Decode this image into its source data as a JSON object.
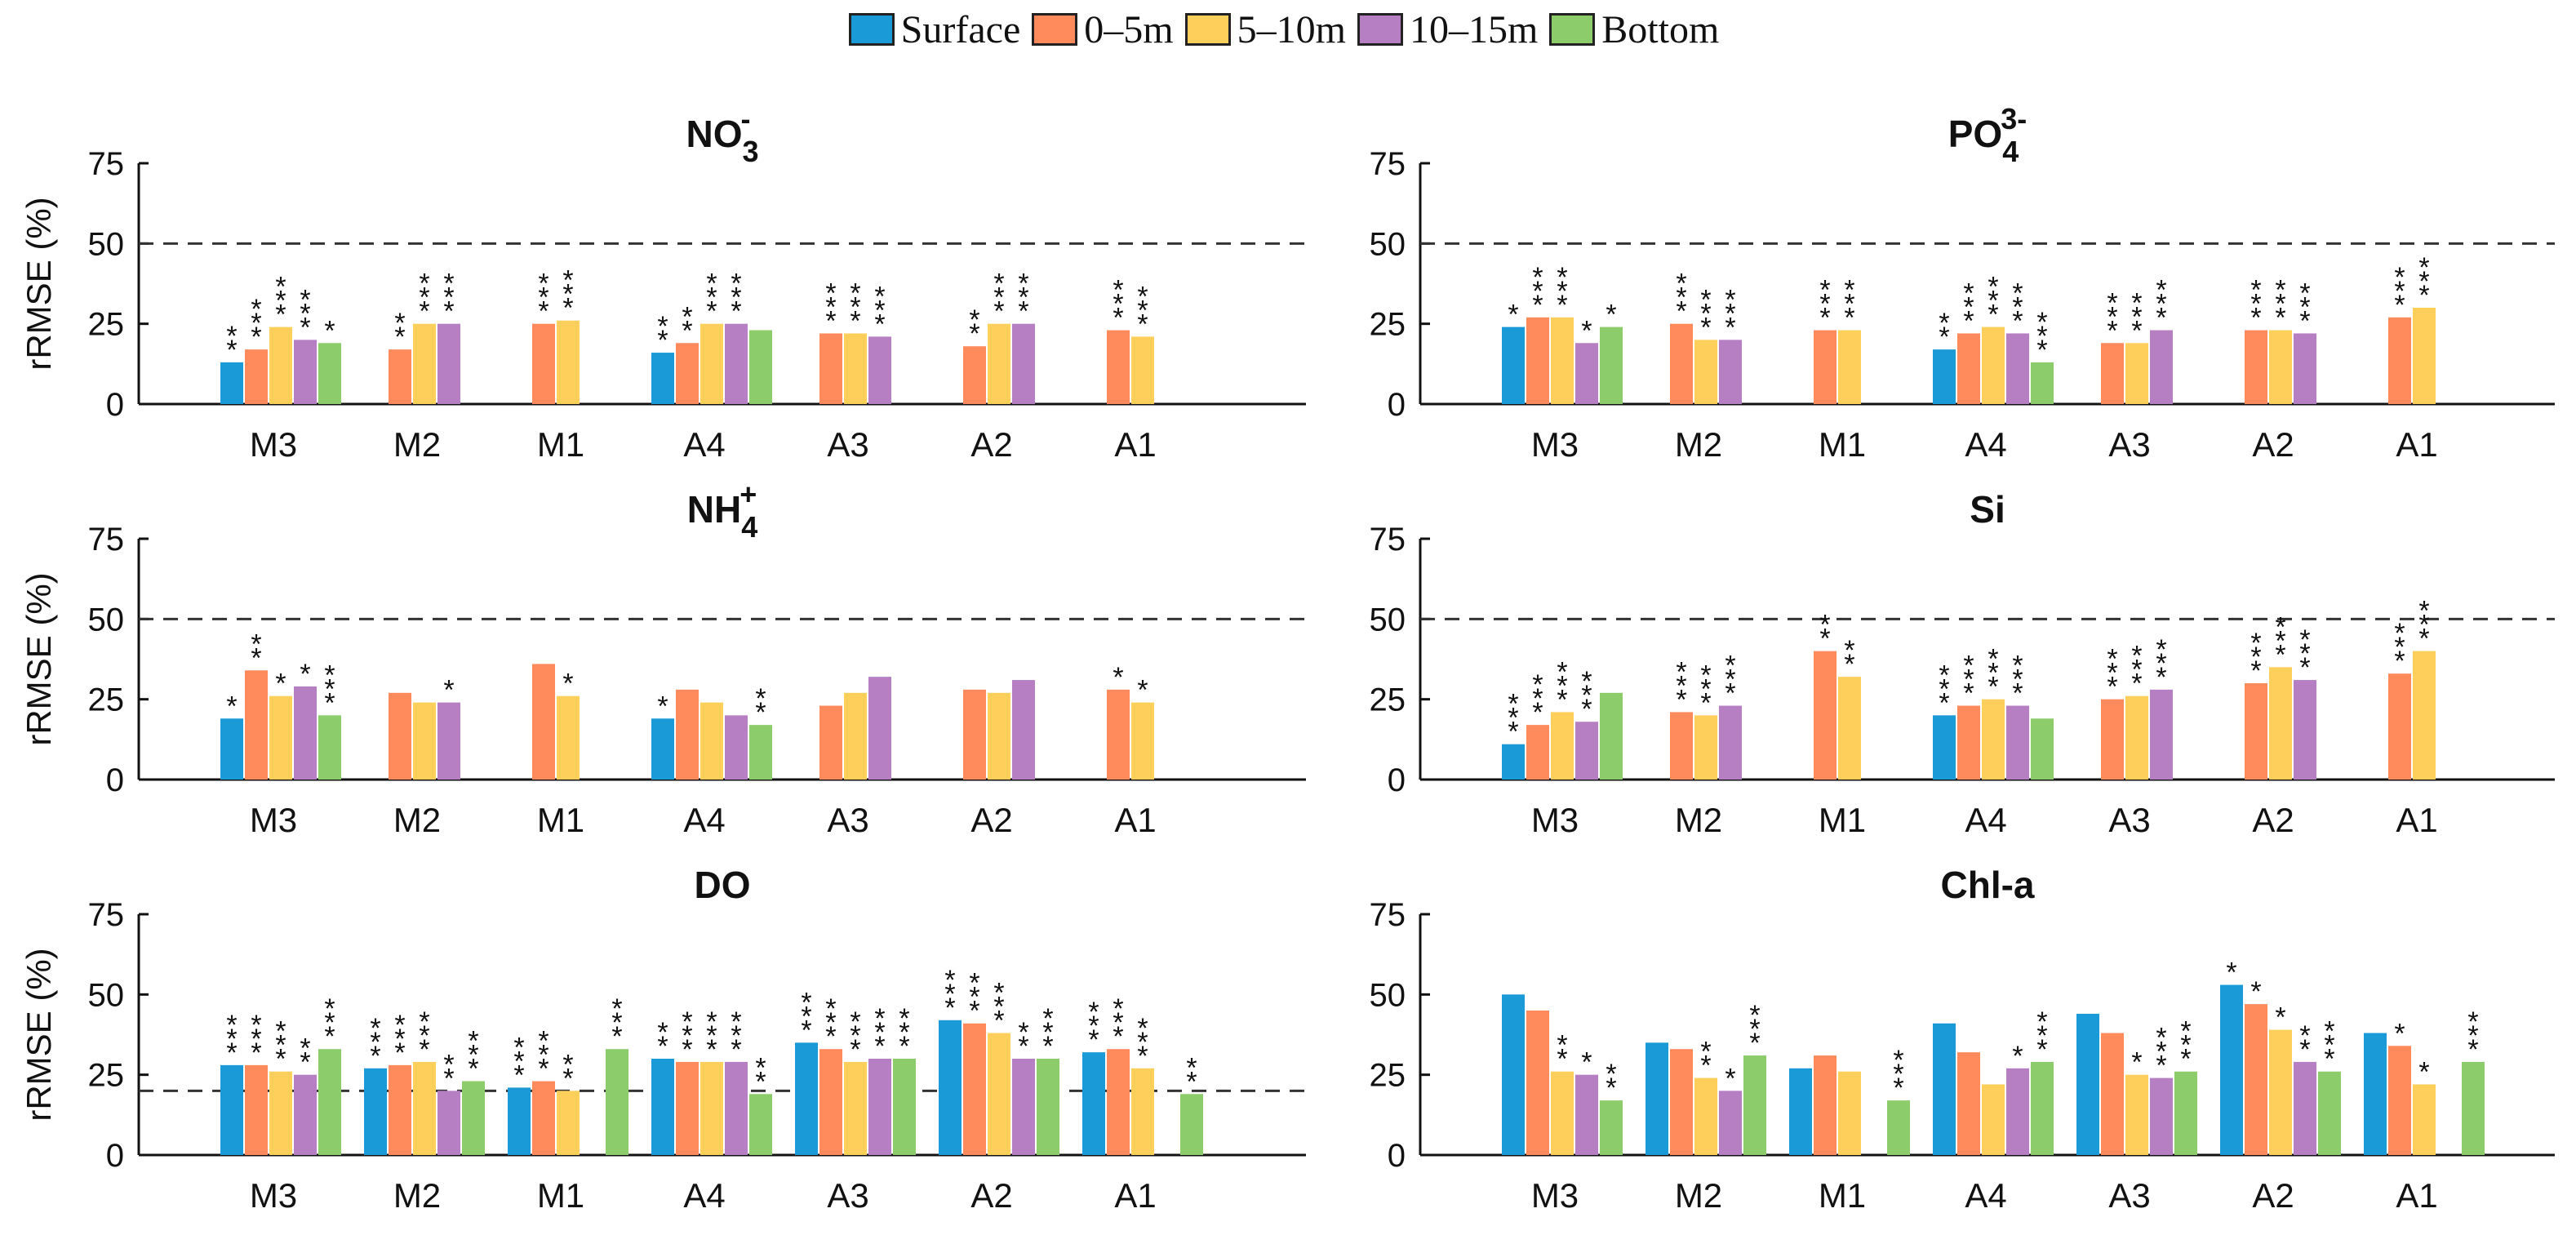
{
  "legend": [
    {
      "name": "Surface",
      "color": "#1a9ad6"
    },
    {
      "name": "0–5m",
      "color": "#ff8a5c"
    },
    {
      "name": "5–10m",
      "color": "#ffcf5c"
    },
    {
      "name": "10–15m",
      "color": "#b67fc4"
    },
    {
      "name": "Bottom",
      "color": "#8dcc6a"
    }
  ],
  "chart_data": [
    {
      "type": "bar",
      "title": "NO3-",
      "title_base": "NO",
      "title_sub": "3",
      "title_sup": "-",
      "ylabel": "rRMSE (%)",
      "ylim": [
        0,
        75
      ],
      "yticks": [
        0,
        25,
        50,
        75
      ],
      "reference_line": 50,
      "categories": [
        "M3",
        "M2",
        "M1",
        "A4",
        "A3",
        "A2",
        "A1"
      ],
      "series": [
        {
          "name": "Surface",
          "values": [
            13,
            null,
            null,
            16,
            null,
            null,
            null
          ],
          "stars": [
            "**",
            "",
            "",
            "**",
            "",
            "",
            ""
          ]
        },
        {
          "name": "0–5m",
          "values": [
            17,
            17,
            25,
            19,
            22,
            18,
            23
          ],
          "stars": [
            "***",
            "**",
            "***",
            "**",
            "***",
            "**",
            "***"
          ]
        },
        {
          "name": "5–10m",
          "values": [
            24,
            25,
            26,
            25,
            22,
            25,
            21
          ],
          "stars": [
            "***",
            "***",
            "***",
            "***",
            "***",
            "***",
            "***"
          ]
        },
        {
          "name": "10–15m",
          "values": [
            20,
            25,
            null,
            25,
            21,
            25,
            null
          ],
          "stars": [
            "***",
            "***",
            "",
            "***",
            "***",
            "***",
            ""
          ]
        },
        {
          "name": "Bottom",
          "values": [
            19,
            null,
            null,
            23,
            null,
            null,
            null
          ],
          "stars": [
            "*",
            "",
            "",
            "",
            "",
            "",
            ""
          ]
        }
      ]
    },
    {
      "type": "bar",
      "title": "PO43-",
      "title_base": "PO",
      "title_sub": "4",
      "title_sup": "3-",
      "ylabel": "",
      "ylim": [
        0,
        75
      ],
      "yticks": [
        0,
        25,
        50,
        75
      ],
      "reference_line": 50,
      "categories": [
        "M3",
        "M2",
        "M1",
        "A4",
        "A3",
        "A2",
        "A1"
      ],
      "series": [
        {
          "name": "Surface",
          "values": [
            24,
            null,
            null,
            17,
            null,
            null,
            null
          ],
          "stars": [
            "*",
            "",
            "",
            "**",
            "",
            "",
            ""
          ]
        },
        {
          "name": "0–5m",
          "values": [
            27,
            25,
            23,
            22,
            19,
            23,
            27
          ],
          "stars": [
            "***",
            "***",
            "***",
            "***",
            "***",
            "***",
            "***"
          ]
        },
        {
          "name": "5–10m",
          "values": [
            27,
            20,
            23,
            24,
            19,
            23,
            30
          ],
          "stars": [
            "***",
            "***",
            "***",
            "***",
            "***",
            "***",
            "***"
          ]
        },
        {
          "name": "10–15m",
          "values": [
            19,
            20,
            null,
            22,
            23,
            22,
            null
          ],
          "stars": [
            "*",
            "***",
            "",
            "***",
            "***",
            "***",
            ""
          ]
        },
        {
          "name": "Bottom",
          "values": [
            24,
            null,
            null,
            13,
            null,
            null,
            null
          ],
          "stars": [
            "*",
            "",
            "",
            "***",
            "",
            "",
            ""
          ]
        }
      ]
    },
    {
      "type": "bar",
      "title": "NH4+",
      "title_base": "NH",
      "title_sub": "4",
      "title_sup": "+",
      "ylabel": "rRMSE (%)",
      "ylim": [
        0,
        75
      ],
      "yticks": [
        0,
        25,
        50,
        75
      ],
      "reference_line": 50,
      "categories": [
        "M3",
        "M2",
        "M1",
        "A4",
        "A3",
        "A2",
        "A1"
      ],
      "series": [
        {
          "name": "Surface",
          "values": [
            19,
            null,
            null,
            19,
            null,
            null,
            null
          ],
          "stars": [
            "*",
            "",
            "",
            "*",
            "",
            "",
            ""
          ]
        },
        {
          "name": "0–5m",
          "values": [
            34,
            27,
            36,
            28,
            23,
            28,
            28
          ],
          "stars": [
            "**",
            "",
            "",
            "",
            "",
            "",
            "*"
          ]
        },
        {
          "name": "5–10m",
          "values": [
            26,
            24,
            26,
            24,
            27,
            27,
            24
          ],
          "stars": [
            "*",
            "",
            "*",
            "",
            "",
            "",
            "*"
          ]
        },
        {
          "name": "10–15m",
          "values": [
            29,
            24,
            null,
            20,
            32,
            31,
            null
          ],
          "stars": [
            "*",
            "*",
            "",
            "",
            "",
            "",
            ""
          ]
        },
        {
          "name": "Bottom",
          "values": [
            20,
            null,
            null,
            17,
            null,
            null,
            null
          ],
          "stars": [
            "***",
            "",
            "",
            "**",
            "",
            "",
            ""
          ]
        }
      ]
    },
    {
      "type": "bar",
      "title": "Si",
      "ylabel": "",
      "ylim": [
        0,
        75
      ],
      "yticks": [
        0,
        25,
        50,
        75
      ],
      "reference_line": 50,
      "categories": [
        "M3",
        "M2",
        "M1",
        "A4",
        "A3",
        "A2",
        "A1"
      ],
      "series": [
        {
          "name": "Surface",
          "values": [
            11,
            null,
            null,
            20,
            null,
            null,
            null
          ],
          "stars": [
            "***",
            "",
            "",
            "***",
            "",
            "",
            ""
          ]
        },
        {
          "name": "0–5m",
          "values": [
            17,
            21,
            40,
            23,
            25,
            30,
            33
          ],
          "stars": [
            "***",
            "***",
            "**",
            "***",
            "***",
            "***",
            "***"
          ]
        },
        {
          "name": "5–10m",
          "values": [
            21,
            20,
            32,
            25,
            26,
            35,
            40
          ],
          "stars": [
            "***",
            "***",
            "**",
            "***",
            "***",
            "***",
            "***"
          ]
        },
        {
          "name": "10–15m",
          "values": [
            18,
            23,
            null,
            23,
            28,
            31,
            null
          ],
          "stars": [
            "***",
            "***",
            "",
            "***",
            "***",
            "***",
            ""
          ]
        },
        {
          "name": "Bottom",
          "values": [
            27,
            null,
            null,
            19,
            null,
            null,
            null
          ],
          "stars": [
            "",
            "",
            "",
            "",
            "",
            "",
            ""
          ]
        }
      ]
    },
    {
      "type": "bar",
      "title": "DO",
      "ylabel": "rRMSE (%)",
      "ylim": [
        0,
        75
      ],
      "yticks": [
        0,
        25,
        50,
        75
      ],
      "reference_line": 20,
      "categories": [
        "M3",
        "M2",
        "M1",
        "A4",
        "A3",
        "A2",
        "A1"
      ],
      "series": [
        {
          "name": "Surface",
          "values": [
            28,
            27,
            21,
            30,
            35,
            42,
            32
          ],
          "stars": [
            "***",
            "***",
            "***",
            "**",
            "***",
            "***",
            "***"
          ]
        },
        {
          "name": "0–5m",
          "values": [
            28,
            28,
            23,
            29,
            33,
            41,
            33
          ],
          "stars": [
            "***",
            "***",
            "***",
            "***",
            "***",
            "***",
            "***"
          ]
        },
        {
          "name": "5–10m",
          "values": [
            26,
            29,
            20,
            29,
            29,
            38,
            27
          ],
          "stars": [
            "***",
            "***",
            "**",
            "***",
            "***",
            "***",
            "***"
          ]
        },
        {
          "name": "10–15m",
          "values": [
            25,
            20,
            null,
            29,
            30,
            30,
            null
          ],
          "stars": [
            "**",
            "**",
            "",
            "***",
            "***",
            "**",
            ""
          ]
        },
        {
          "name": "Bottom",
          "values": [
            33,
            23,
            33,
            19,
            30,
            30,
            19
          ],
          "stars": [
            "***",
            "***",
            "***",
            "**",
            "***",
            "***",
            "**"
          ]
        }
      ]
    },
    {
      "type": "bar",
      "title": "Chl-a",
      "ylabel": "",
      "ylim": [
        0,
        75
      ],
      "yticks": [
        0,
        25,
        50,
        75
      ],
      "reference_line": null,
      "categories": [
        "M3",
        "M2",
        "M1",
        "A4",
        "A3",
        "A2",
        "A1"
      ],
      "series": [
        {
          "name": "Surface",
          "values": [
            50,
            35,
            27,
            41,
            44,
            53,
            38
          ],
          "stars": [
            "",
            "",
            "",
            "",
            "",
            "*",
            ""
          ]
        },
        {
          "name": "0–5m",
          "values": [
            45,
            33,
            31,
            32,
            38,
            47,
            34
          ],
          "stars": [
            "",
            "",
            "",
            "",
            "",
            "*",
            "*"
          ]
        },
        {
          "name": "5–10m",
          "values": [
            26,
            24,
            26,
            22,
            25,
            39,
            22
          ],
          "stars": [
            "**",
            "**",
            "",
            "",
            "*",
            "*",
            "*"
          ]
        },
        {
          "name": "10–15m",
          "values": [
            25,
            20,
            null,
            27,
            24,
            29,
            null
          ],
          "stars": [
            "*",
            "*",
            "",
            "*",
            "***",
            "**",
            ""
          ]
        },
        {
          "name": "Bottom",
          "values": [
            17,
            31,
            17,
            29,
            26,
            26,
            29
          ],
          "stars": [
            "**",
            "***",
            "***",
            "***",
            "***",
            "***",
            "***"
          ]
        }
      ]
    }
  ]
}
